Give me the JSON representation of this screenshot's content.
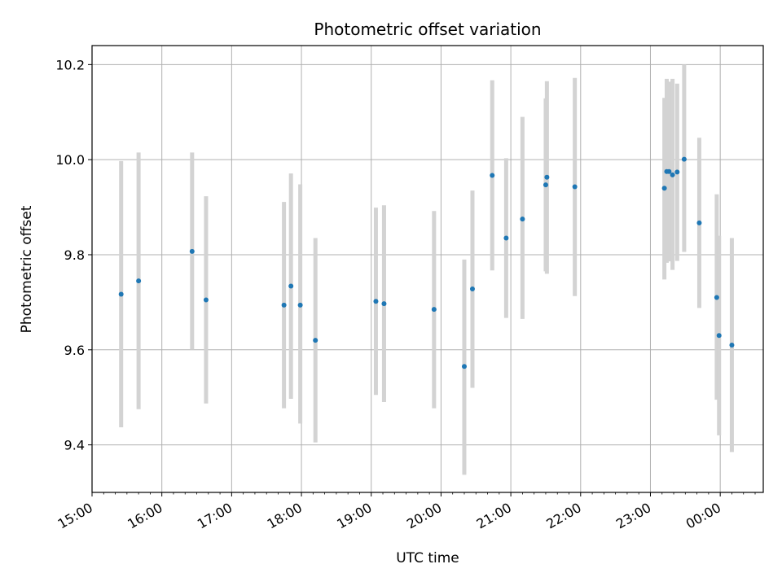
{
  "chart_data": {
    "type": "scatter",
    "title": "Photometric offset variation",
    "xlabel": "UTC time",
    "ylabel": "Photometric offset",
    "x_ticks": [
      "15:00",
      "16:00",
      "17:00",
      "18:00",
      "19:00",
      "20:00",
      "21:00",
      "22:00",
      "23:00",
      "00:00"
    ],
    "y_ticks": [
      "9.4",
      "9.6",
      "9.8",
      "10.0",
      "10.2"
    ],
    "xlim": [
      "15:00",
      "00:37"
    ],
    "ylim": [
      9.3,
      10.24
    ],
    "grid": true,
    "colors": {
      "point": "#1f77b4",
      "errorbar": "#d3d3d3",
      "grid": "#b0b0b0"
    },
    "points": [
      {
        "x": "15:25",
        "y": 9.717,
        "low": 9.437,
        "high": 9.997
      },
      {
        "x": "15:40",
        "y": 9.745,
        "low": 9.475,
        "high": 10.015
      },
      {
        "x": "16:26",
        "y": 9.807,
        "low": 9.6,
        "high": 10.015
      },
      {
        "x": "16:38",
        "y": 9.705,
        "low": 9.487,
        "high": 9.923
      },
      {
        "x": "17:45",
        "y": 9.694,
        "low": 9.477,
        "high": 9.911
      },
      {
        "x": "17:51",
        "y": 9.734,
        "low": 9.497,
        "high": 9.971
      },
      {
        "x": "17:59",
        "y": 9.694,
        "low": 9.445,
        "high": 9.948
      },
      {
        "x": "18:12",
        "y": 9.62,
        "low": 9.405,
        "high": 9.835
      },
      {
        "x": "19:04",
        "y": 9.702,
        "low": 9.505,
        "high": 9.899
      },
      {
        "x": "19:11",
        "y": 9.697,
        "low": 9.49,
        "high": 9.904
      },
      {
        "x": "19:54",
        "y": 9.685,
        "low": 9.477,
        "high": 9.892
      },
      {
        "x": "20:20",
        "y": 9.565,
        "low": 9.337,
        "high": 9.79
      },
      {
        "x": "20:27",
        "y": 9.728,
        "low": 9.52,
        "high": 9.935
      },
      {
        "x": "20:44",
        "y": 9.967,
        "low": 9.767,
        "high": 10.167
      },
      {
        "x": "20:56",
        "y": 9.835,
        "low": 9.667,
        "high": 10.003
      },
      {
        "x": "21:10",
        "y": 9.875,
        "low": 9.665,
        "high": 10.09
      },
      {
        "x": "21:30",
        "y": 9.947,
        "low": 9.765,
        "high": 10.129
      },
      {
        "x": "21:31",
        "y": 9.963,
        "low": 9.76,
        "high": 10.165
      },
      {
        "x": "21:55",
        "y": 9.943,
        "low": 9.713,
        "high": 10.172
      },
      {
        "x": "23:12",
        "y": 9.94,
        "low": 9.748,
        "high": 10.13
      },
      {
        "x": "23:14",
        "y": 9.975,
        "low": 9.783,
        "high": 10.17
      },
      {
        "x": "23:16",
        "y": 9.975,
        "low": 9.786,
        "high": 10.164
      },
      {
        "x": "23:19",
        "y": 9.968,
        "low": 9.768,
        "high": 10.17
      },
      {
        "x": "23:23",
        "y": 9.974,
        "low": 9.787,
        "high": 10.16
      },
      {
        "x": "23:29",
        "y": 10.001,
        "low": 9.806,
        "high": 10.2
      },
      {
        "x": "23:42",
        "y": 9.867,
        "low": 9.688,
        "high": 10.046
      },
      {
        "x": "23:57",
        "y": 9.71,
        "low": 9.495,
        "high": 9.927
      },
      {
        "x": "23:59",
        "y": 9.63,
        "low": 9.42,
        "high": 9.84
      },
      {
        "x": "00:10",
        "y": 9.61,
        "low": 9.385,
        "high": 9.835
      }
    ]
  }
}
